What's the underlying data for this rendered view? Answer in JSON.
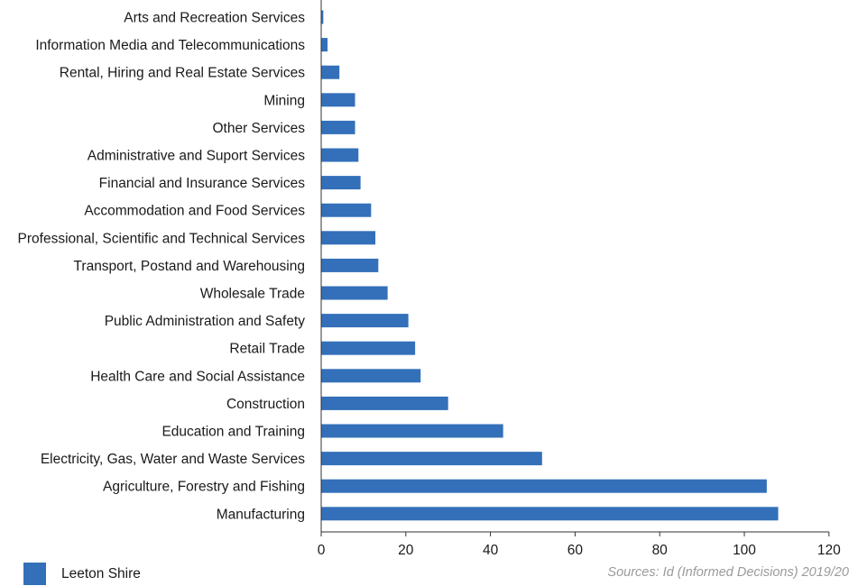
{
  "chart_data": {
    "type": "bar",
    "orientation": "horizontal",
    "categories": [
      "Arts and Recreation Services",
      "Information Media and Telecommunications",
      "Rental, Hiring and Real Estate Services",
      "Mining",
      "Other Services",
      "Administrative and Suport Services",
      "Financial and Insurance Services",
      "Accommodation and Food Services",
      "Professional, Scientific and Technical Services",
      "Transport, Postand and Warehousing",
      "Wholesale Trade",
      "Public Administration and Safety",
      "Retail Trade",
      "Health Care and Social Assistance",
      "Construction",
      "Education and Training",
      "Electricity, Gas, Water and Waste Services",
      "Agriculture, Forestry and Fishing",
      "Manufacturing"
    ],
    "series": [
      {
        "name": "Leeton Shire",
        "color": "#3370b9",
        "values": [
          0.5,
          1.5,
          4.3,
          8,
          8,
          8.8,
          9.3,
          11.8,
          12.8,
          13.5,
          15.7,
          20.6,
          22.2,
          23.5,
          30,
          43,
          52.2,
          105.3,
          108
        ]
      }
    ],
    "xlim": [
      0,
      120
    ],
    "xticks": [
      0,
      20,
      40,
      60,
      80,
      100,
      120
    ],
    "grid": false,
    "legend": "bottom-left",
    "title": "",
    "xlabel": "",
    "ylabel": ""
  },
  "legend": {
    "label": "Leeton Shire",
    "color": "#3370b9"
  },
  "source": "Sources: Id (Informed Decisions) 2019/20"
}
